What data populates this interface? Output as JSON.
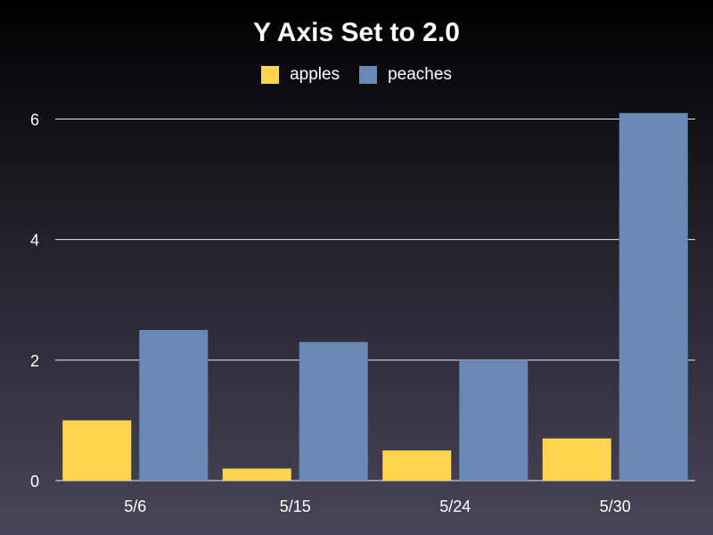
{
  "chart_data": {
    "type": "bar",
    "title": "Y Axis Set to 2.0",
    "xlabel": "",
    "ylabel": "",
    "categories": [
      "5/6",
      "5/15",
      "5/24",
      "5/30"
    ],
    "series": [
      {
        "name": "apples",
        "color": "#ffd54f",
        "values": [
          1.0,
          0.2,
          0.5,
          0.7
        ]
      },
      {
        "name": "peaches",
        "color": "#6888b6",
        "values": [
          2.5,
          2.3,
          2.0,
          6.1
        ]
      }
    ],
    "ylim": [
      0,
      6.2
    ],
    "yticks": [
      "0",
      "2",
      "4",
      "6"
    ],
    "ytick_values": [
      0,
      2,
      4,
      6
    ],
    "grid": true,
    "legend_position": "top-center"
  }
}
